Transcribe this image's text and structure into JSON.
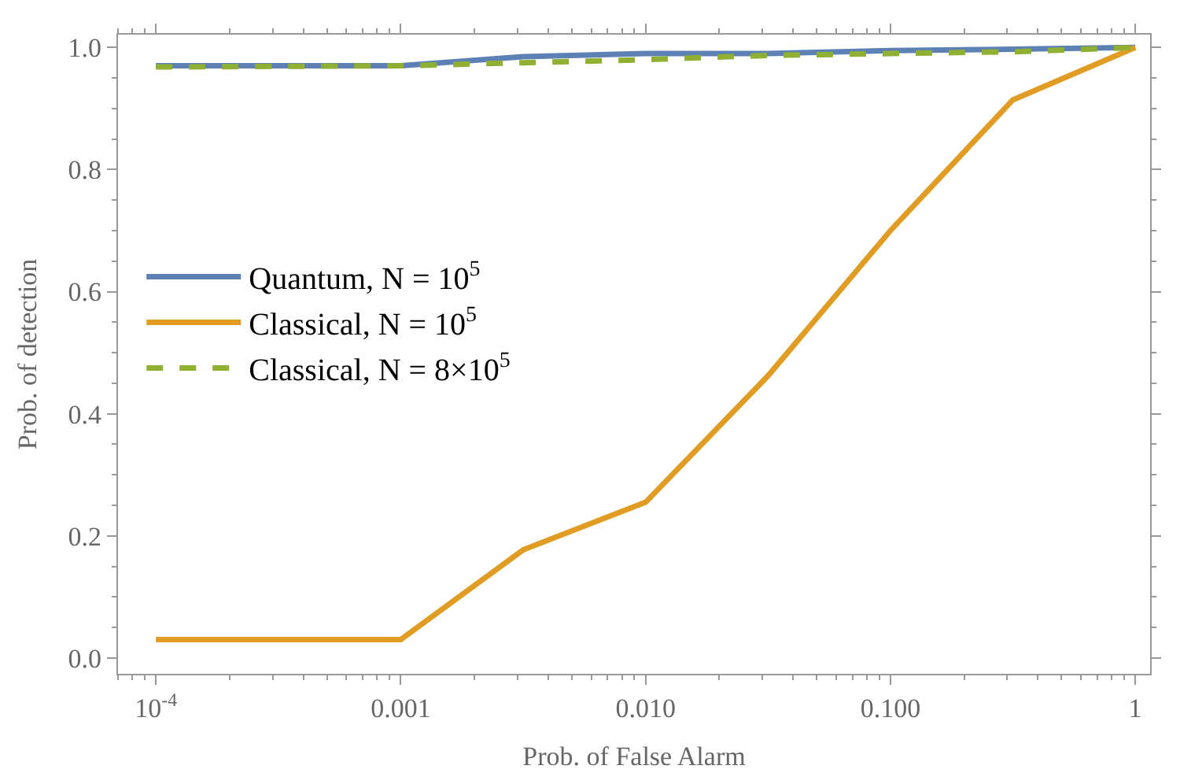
{
  "chart_data": {
    "type": "line",
    "xlabel": "Prob. of False Alarm",
    "ylabel": "Prob. of detection",
    "x": [
      0.0001,
      0.001,
      0.00316,
      0.01,
      0.0316,
      0.1,
      0.316,
      1
    ],
    "series": [
      {
        "name": "Quantum, N = 10$^{5}$",
        "color": "#5e81b5",
        "values": [
          0.97,
          0.97,
          0.985,
          0.99,
          0.99,
          0.995,
          0.997,
          1.0
        ],
        "line_style": "solid"
      },
      {
        "name": "Classical, N = 10$^{5}$",
        "color": "#e19c24",
        "values": [
          0.03,
          0.03,
          0.177,
          0.255,
          0.462,
          0.7,
          0.914,
          1.0
        ],
        "line_style": "solid"
      },
      {
        "name": "Classical, N = 8×10$^{5}$",
        "color": "#8fb032",
        "values": [
          0.968,
          0.97,
          0.975,
          0.98,
          0.987,
          0.99,
          0.993,
          1.0
        ],
        "line_style": "dashed"
      }
    ],
    "log": "x",
    "xlim": [
      7e-05,
      1.15
    ],
    "ylim": [
      -0.026,
      1.021
    ],
    "xticks": [
      {
        "value": 0.0001,
        "label": "10$^{-4}$"
      },
      {
        "value": 0.001,
        "label": "0.001"
      },
      {
        "value": 0.01,
        "label": "0.010"
      },
      {
        "value": 0.1,
        "label": "0.100"
      },
      {
        "value": 1,
        "label": "1"
      }
    ],
    "yticks": [
      {
        "value": 0,
        "label": "0.0"
      },
      {
        "value": 0.2,
        "label": "0.2"
      },
      {
        "value": 0.4,
        "label": "0.4"
      },
      {
        "value": 0.6,
        "label": "0.6"
      },
      {
        "value": 0.8,
        "label": "0.8"
      },
      {
        "value": 1,
        "label": "1.0"
      }
    ],
    "legend": "left",
    "marker": "none"
  }
}
